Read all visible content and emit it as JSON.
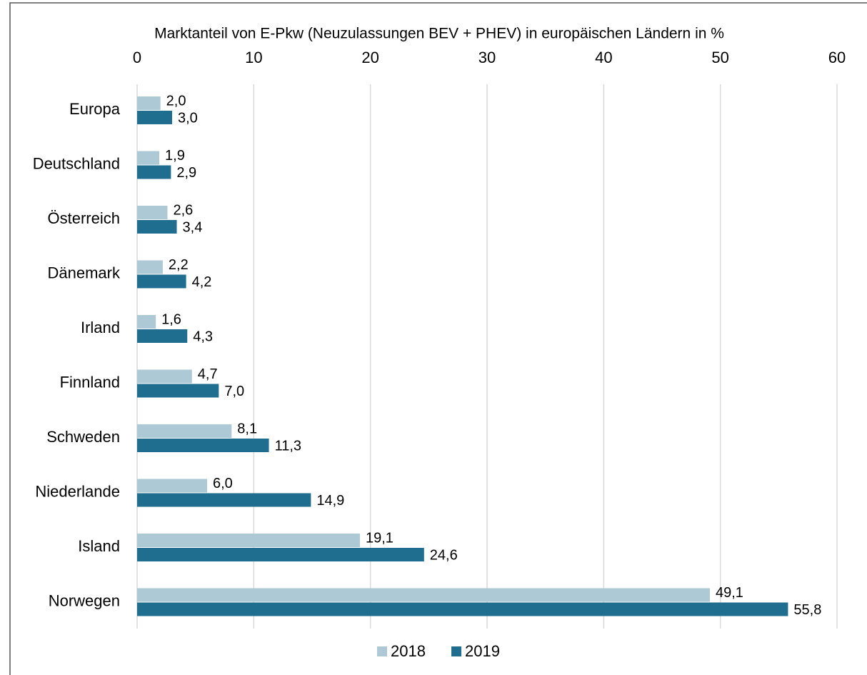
{
  "chart_data": {
    "type": "bar",
    "orientation": "horizontal",
    "title": "Marktanteil von E-Pkw (Neuzulassungen BEV + PHEV) in europäischen Ländern in %",
    "categories": [
      "Europa",
      "Deutschland",
      "Österreich",
      "Dänemark",
      "Irland",
      "Finnland",
      "Schweden",
      "Niederlande",
      "Island",
      "Norwegen"
    ],
    "series": [
      {
        "name": "2018",
        "color": "#adc9d6",
        "values": [
          2.0,
          1.9,
          2.6,
          2.2,
          1.6,
          4.7,
          8.1,
          6.0,
          19.1,
          49.1
        ],
        "value_labels": [
          "2,0",
          "1,9",
          "2,6",
          "2,2",
          "1,6",
          "4,7",
          "8,1",
          "6,0",
          "19,1",
          "49,1"
        ]
      },
      {
        "name": "2019",
        "color": "#1f6e8f",
        "values": [
          3.0,
          2.9,
          3.4,
          4.2,
          4.3,
          7.0,
          11.3,
          14.9,
          24.6,
          55.8
        ],
        "value_labels": [
          "3,0",
          "2,9",
          "3,4",
          "4,2",
          "4,3",
          "7,0",
          "11,3",
          "14,9",
          "24,6",
          "55,8"
        ]
      }
    ],
    "xlim": [
      0,
      60
    ],
    "xticks": [
      0,
      10,
      20,
      30,
      40,
      50,
      60
    ],
    "grid": true,
    "legend": "bottom"
  }
}
